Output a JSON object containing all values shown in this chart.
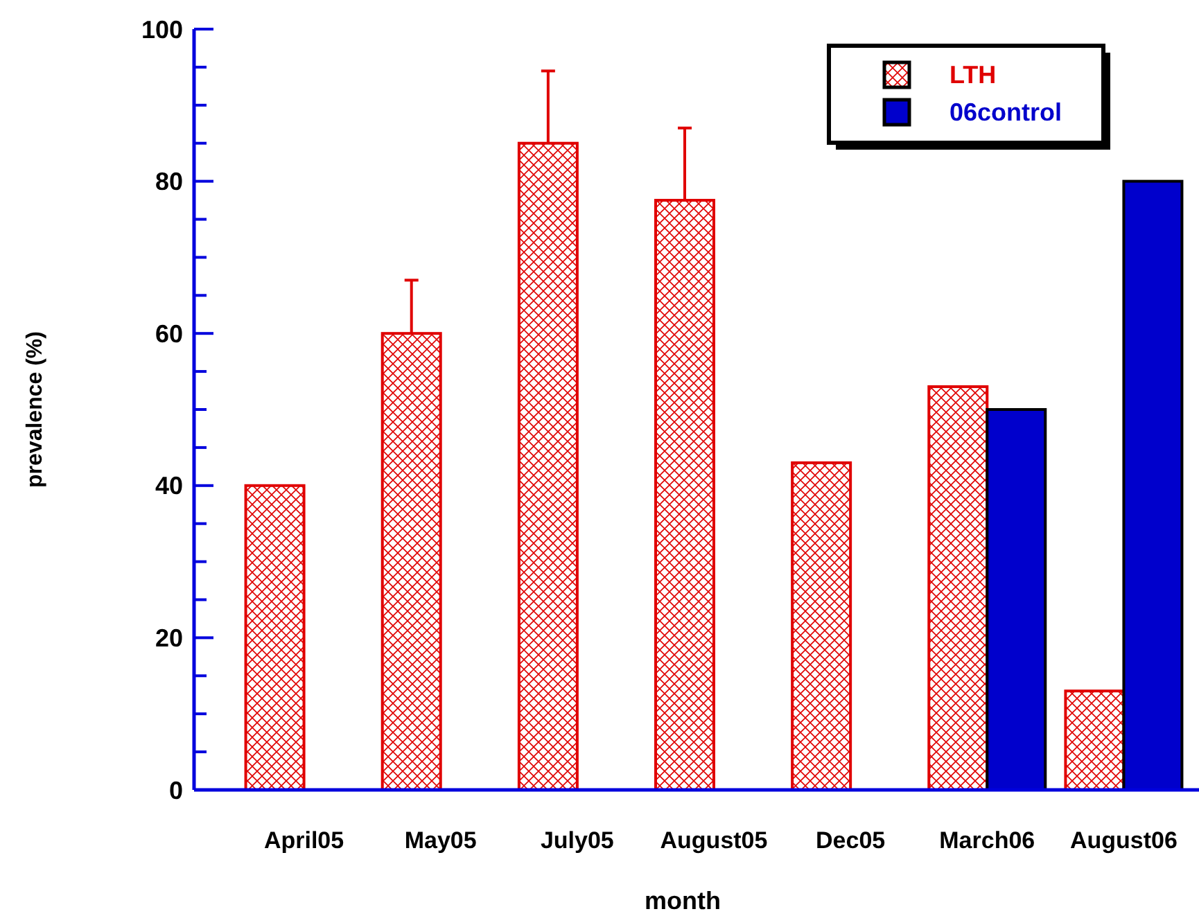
{
  "chart_data": {
    "type": "bar",
    "xlabel": "month",
    "ylabel": "prevalence (%)",
    "categories": [
      "April05",
      "May05",
      "July05",
      "August05",
      "Dec05",
      "March06",
      "August06"
    ],
    "series": [
      {
        "name": "LTH",
        "color": "#e00000",
        "values": [
          40,
          60,
          85,
          77.5,
          43,
          53,
          13
        ],
        "errors": [
          null,
          [
            60,
            67
          ],
          [
            85,
            94.5
          ],
          [
            77.5,
            87
          ],
          null,
          null,
          null
        ]
      },
      {
        "name": "06control",
        "color": "#0000cc",
        "values": [
          null,
          null,
          null,
          null,
          null,
          50,
          80
        ]
      }
    ],
    "ylim": [
      0,
      100
    ],
    "yticks": [
      0,
      20,
      40,
      60,
      80,
      100
    ],
    "grid": false,
    "legend": "top right"
  }
}
